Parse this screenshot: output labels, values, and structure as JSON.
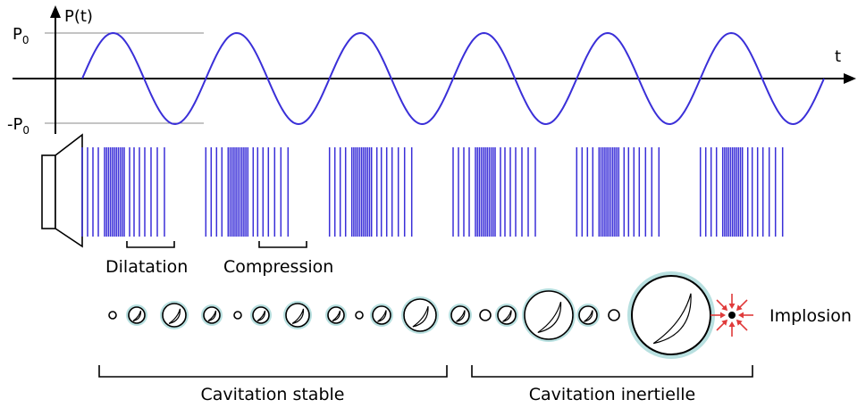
{
  "axes": {
    "y_label": "P(t)",
    "x_label": "t",
    "p0_label": "P",
    "p0_sub": "0",
    "neg_p0_label": "-P",
    "neg_p0_sub": "0"
  },
  "wave": {
    "cycles": 6,
    "color": "#3a2fd8"
  },
  "pulse_color": "#3a2fd8",
  "labels": {
    "dilatation": "Dilatation",
    "compression": "Compression",
    "implosion": "Implosion",
    "stable": "Cavitation stable",
    "inertial": "Cavitation inertielle"
  },
  "colors": {
    "halo": "#b8e0e0",
    "burst": "#e03a3a",
    "line": "#000000"
  }
}
